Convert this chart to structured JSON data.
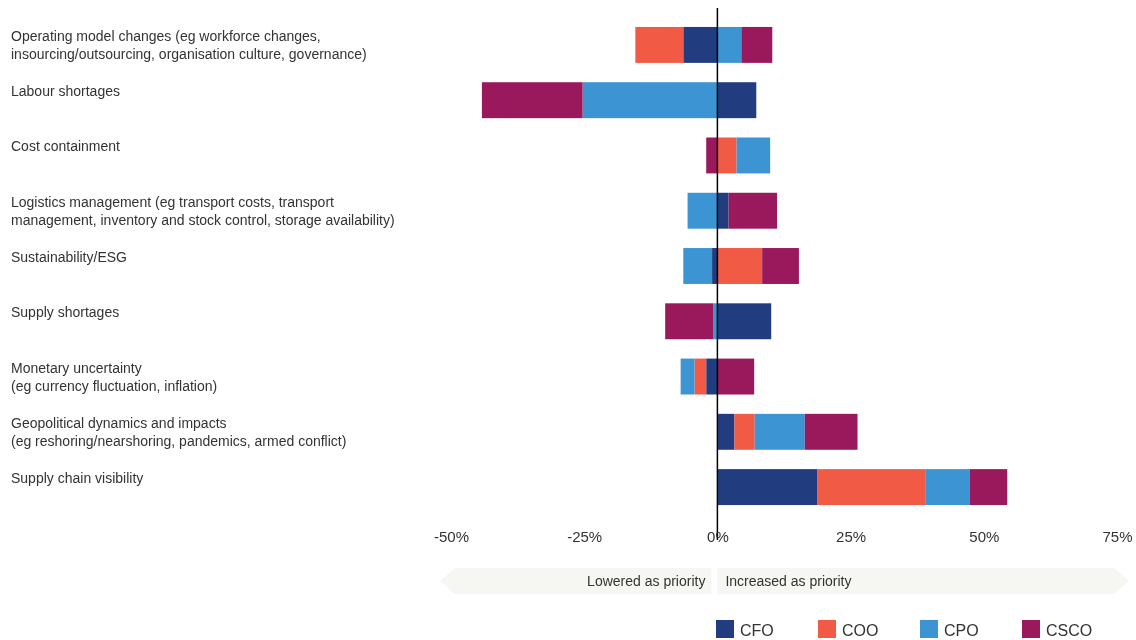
{
  "chart_data": {
    "type": "bar",
    "orientation": "horizontal",
    "stacked": true,
    "categories": [
      "Operating model changes (eg workforce changes,\ninsourcing/outsourcing, organisation culture, governance)",
      "Labour shortages",
      "Cost containment",
      "Logistics management (eg transport costs, transport\nmanagement, inventory and stock control, storage availability)",
      "Sustainability/ESG",
      "Supply shortages",
      "Monetary uncertainty\n(eg currency fluctuation, inflation)",
      "Geopolitical dynamics and impacts\n(eg reshoring/nearshoring, pandemics, armed conflict)",
      "Supply chain visibility"
    ],
    "series": [
      {
        "name": "CFO",
        "color": "#223d7f",
        "values": [
          -6.4,
          7.3,
          0,
          2.1,
          -1.0,
          10.1,
          -2.1,
          3.2,
          18.8
        ]
      },
      {
        "name": "COO",
        "color": "#f15a45",
        "values": [
          -9.0,
          0,
          3.6,
          0,
          8.4,
          0,
          -2.2,
          3.8,
          20.2
        ]
      },
      {
        "name": "CPO",
        "color": "#3d94d3",
        "values": [
          4.5,
          -25.3,
          6.3,
          -5.6,
          -5.4,
          -0.8,
          -2.6,
          9.4,
          8.4
        ]
      },
      {
        "name": "CSCO",
        "color": "#9a195c",
        "values": [
          5.8,
          -18.9,
          -2.1,
          9.1,
          6.9,
          -9.0,
          6.9,
          9.9,
          7.0
        ]
      }
    ],
    "xlim": [
      -50,
      75
    ],
    "xticks": [
      {
        "value": -50,
        "label": "-50%"
      },
      {
        "value": -25,
        "label": "-25%"
      },
      {
        "value": 0,
        "label": "0%"
      },
      {
        "value": 25,
        "label": "25%"
      },
      {
        "value": 50,
        "label": "50%"
      },
      {
        "value": 75,
        "label": "75%"
      }
    ],
    "ref_lines": [
      {
        "axis": "x",
        "value": 0,
        "color": "#000000"
      }
    ],
    "annotations": [
      "Lowered as priority",
      "Increased as priority"
    ],
    "legend": "bottom",
    "grid": false
  }
}
